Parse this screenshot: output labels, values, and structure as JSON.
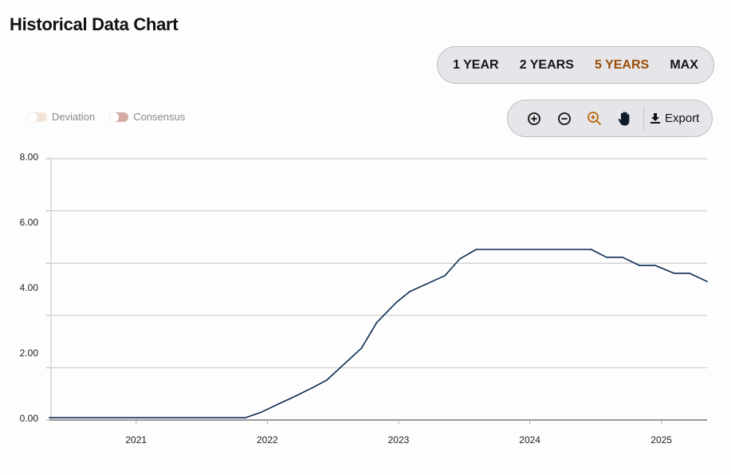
{
  "header": {
    "title": "Historical Data Chart"
  },
  "range_selector": {
    "options": [
      "1 YEAR",
      "2 YEARS",
      "5 YEARS",
      "MAX"
    ],
    "active": "5 YEARS",
    "active_color": "#9a4d08"
  },
  "toolbar": {
    "tools": [
      "zoom-in-icon",
      "zoom-out-icon",
      "zoom-select-icon",
      "pan-hand-icon"
    ],
    "active_tool": "zoom-select-icon",
    "export_label": "Export"
  },
  "legend": [
    {
      "label": "Deviation",
      "color": "#f2e4d8",
      "enabled": false
    },
    {
      "label": "Consensus",
      "color": "#d4aca2",
      "enabled": true
    }
  ],
  "chart_data": {
    "type": "line",
    "title": "",
    "xlabel": "",
    "ylabel": "",
    "xlim": [
      "2020-05-05",
      "2025-05-08"
    ],
    "ylim": [
      0,
      8
    ],
    "y_ticks": [
      "0.00",
      "2.00",
      "4.00",
      "6.00",
      "8.00"
    ],
    "x_ticks": [
      "2021",
      "2022",
      "2023",
      "2024",
      "2025"
    ],
    "grid": true,
    "line_color": "#0d2b50",
    "series": [
      {
        "points": [
          [
            "2020-05-05",
            0.07
          ],
          [
            "2021-11-01",
            0.07
          ],
          [
            "2021-12-15",
            0.24
          ],
          [
            "2022-02-01",
            0.49
          ],
          [
            "2022-03-20",
            0.73
          ],
          [
            "2022-05-05",
            0.98
          ],
          [
            "2022-06-15",
            1.22
          ],
          [
            "2022-09-20",
            2.2
          ],
          [
            "2022-11-01",
            2.98
          ],
          [
            "2022-12-25",
            3.59
          ],
          [
            "2023-02-01",
            3.93
          ],
          [
            "2023-05-10",
            4.42
          ],
          [
            "2023-06-20",
            4.93
          ],
          [
            "2023-08-05",
            5.22
          ],
          [
            "2024-06-20",
            5.22
          ],
          [
            "2024-08-01",
            4.98
          ],
          [
            "2024-09-15",
            4.98
          ],
          [
            "2024-11-01",
            4.73
          ],
          [
            "2024-12-15",
            4.73
          ],
          [
            "2025-02-05",
            4.49
          ],
          [
            "2025-03-20",
            4.49
          ],
          [
            "2025-05-08",
            4.24
          ]
        ]
      }
    ]
  }
}
